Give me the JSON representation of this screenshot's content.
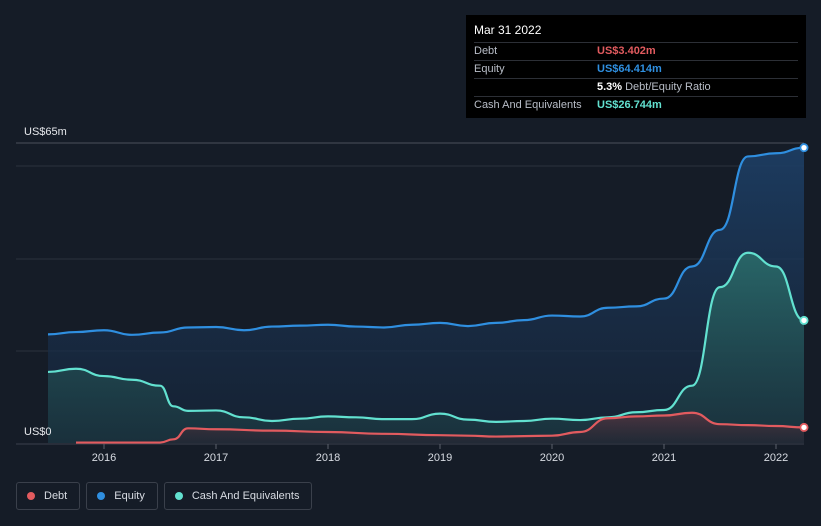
{
  "chart_data": {
    "type": "area",
    "y_max_label": "US$65m",
    "y_min_label": "US$0",
    "ylim": [
      0,
      65
    ],
    "xlim": [
      2015.5,
      2022.25
    ],
    "x_ticks": [
      2016,
      2017,
      2018,
      2019,
      2020,
      2021,
      2022
    ],
    "x_tick_labels": [
      "2016",
      "2017",
      "2018",
      "2019",
      "2020",
      "2021",
      "2022"
    ],
    "series": [
      {
        "name": "Debt",
        "key": "debt",
        "color": "#e25b5f",
        "points": [
          [
            2015.75,
            0.1
          ],
          [
            2016.5,
            0.1
          ],
          [
            2016.62,
            0.8
          ],
          [
            2016.75,
            3.2
          ],
          [
            2017.0,
            3.0
          ],
          [
            2017.5,
            2.7
          ],
          [
            2018.0,
            2.4
          ],
          [
            2018.5,
            2.0
          ],
          [
            2019.0,
            1.7
          ],
          [
            2019.25,
            1.6
          ],
          [
            2019.5,
            1.4
          ],
          [
            2019.75,
            1.5
          ],
          [
            2020.0,
            1.6
          ],
          [
            2020.25,
            2.4
          ],
          [
            2020.5,
            5.4
          ],
          [
            2020.75,
            5.8
          ],
          [
            2021.0,
            6.0
          ],
          [
            2021.25,
            6.6
          ],
          [
            2021.5,
            4.1
          ],
          [
            2021.75,
            3.9
          ],
          [
            2022.0,
            3.7
          ],
          [
            2022.25,
            3.402
          ]
        ]
      },
      {
        "name": "Equity",
        "key": "equity",
        "color": "#2f8fe0",
        "points": [
          [
            2015.5,
            23.7
          ],
          [
            2015.75,
            24.2
          ],
          [
            2016.0,
            24.6
          ],
          [
            2016.25,
            23.6
          ],
          [
            2016.5,
            24.1
          ],
          [
            2016.75,
            25.2
          ],
          [
            2017.0,
            25.3
          ],
          [
            2017.25,
            24.6
          ],
          [
            2017.5,
            25.4
          ],
          [
            2017.75,
            25.6
          ],
          [
            2018.0,
            25.8
          ],
          [
            2018.25,
            25.4
          ],
          [
            2018.5,
            25.2
          ],
          [
            2018.75,
            25.8
          ],
          [
            2019.0,
            26.2
          ],
          [
            2019.25,
            25.5
          ],
          [
            2019.5,
            26.2
          ],
          [
            2019.75,
            26.8
          ],
          [
            2020.0,
            27.8
          ],
          [
            2020.25,
            27.6
          ],
          [
            2020.5,
            29.5
          ],
          [
            2020.75,
            29.8
          ],
          [
            2021.0,
            31.5
          ],
          [
            2021.25,
            38.5
          ],
          [
            2021.5,
            46.5
          ],
          [
            2021.75,
            62.5
          ],
          [
            2022.0,
            63.2
          ],
          [
            2022.25,
            64.414
          ]
        ]
      },
      {
        "name": "Cash And Equivalents",
        "key": "cash",
        "color": "#62e1d0",
        "points": [
          [
            2015.5,
            15.5
          ],
          [
            2015.75,
            16.2
          ],
          [
            2016.0,
            14.6
          ],
          [
            2016.25,
            13.8
          ],
          [
            2016.5,
            12.5
          ],
          [
            2016.62,
            8.0
          ],
          [
            2016.75,
            7.0
          ],
          [
            2017.0,
            7.1
          ],
          [
            2017.25,
            5.6
          ],
          [
            2017.5,
            4.8
          ],
          [
            2017.75,
            5.3
          ],
          [
            2018.0,
            5.8
          ],
          [
            2018.25,
            5.6
          ],
          [
            2018.5,
            5.2
          ],
          [
            2018.75,
            5.2
          ],
          [
            2019.0,
            6.4
          ],
          [
            2019.25,
            5.1
          ],
          [
            2019.5,
            4.6
          ],
          [
            2019.75,
            4.8
          ],
          [
            2020.0,
            5.3
          ],
          [
            2020.25,
            5.0
          ],
          [
            2020.5,
            5.6
          ],
          [
            2020.75,
            6.7
          ],
          [
            2021.0,
            7.2
          ],
          [
            2021.25,
            12.5
          ],
          [
            2021.5,
            34.0
          ],
          [
            2021.75,
            41.5
          ],
          [
            2022.0,
            38.5
          ],
          [
            2022.25,
            26.744
          ]
        ]
      }
    ]
  },
  "tooltip": {
    "date": "Mar 31 2022",
    "debt_label": "Debt",
    "debt_value": "US$3.402m",
    "equity_label": "Equity",
    "equity_value": "US$64.414m",
    "ratio_value": "5.3%",
    "ratio_suffix": "Debt/Equity Ratio",
    "cash_label": "Cash And Equivalents",
    "cash_value": "US$26.744m"
  },
  "legend": [
    {
      "label": "Debt",
      "color": "#e25b5f"
    },
    {
      "label": "Equity",
      "color": "#2f8fe0"
    },
    {
      "label": "Cash And Equivalents",
      "color": "#62e1d0"
    }
  ]
}
